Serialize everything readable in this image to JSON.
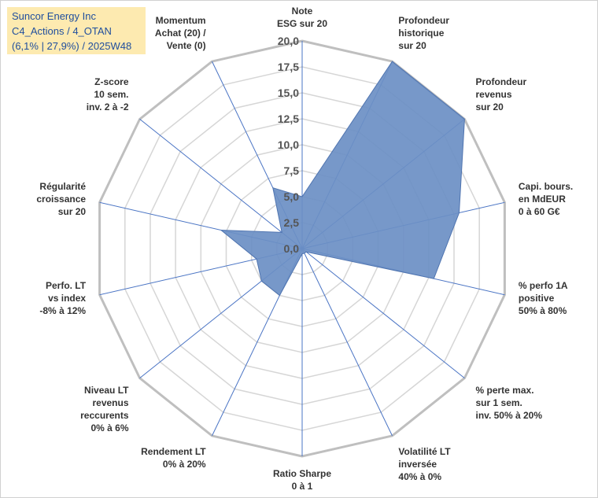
{
  "header": {
    "line1": "Suncor Energy Inc",
    "line2": "C4_Actions / 4_OTAN",
    "line3": "(6,1% | 27,9%) / 2025W48"
  },
  "chart_data": {
    "type": "radar",
    "rmin": 0,
    "rmax": 20,
    "ticks": [
      "0,0",
      "2,5",
      "5,0",
      "7,5",
      "10,0",
      "12,5",
      "15,0",
      "17,5",
      "20,0"
    ],
    "tick_values": [
      0,
      2.5,
      5,
      7.5,
      10,
      12.5,
      15,
      17.5,
      20
    ],
    "grid": true,
    "series_color": "#6b8fc4",
    "axes": [
      {
        "label": [
          "Note",
          "ESG sur 20"
        ],
        "value": 5.0
      },
      {
        "label": [
          "Profondeur",
          "historique",
          "sur 20"
        ],
        "value": 20.0
      },
      {
        "label": [
          "Profondeur",
          "revenus",
          "sur 20"
        ],
        "value": 20.0
      },
      {
        "label": [
          "Capi. bours.",
          "en MdEUR",
          "0 à 60 G€"
        ],
        "value": 15.5
      },
      {
        "label": [
          "% perfo 1A",
          "positive",
          "50% à 80%"
        ],
        "value": 13.0
      },
      {
        "label": [
          "% perte max.",
          "sur 1 sem.",
          "inv. 50% à 20%"
        ],
        "value": 0.5
      },
      {
        "label": [
          "Volatilité LT",
          "inversée",
          "40% à 0%"
        ],
        "value": 0.5
      },
      {
        "label": [
          "Ratio Sharpe",
          "0 à 1"
        ],
        "value": 0.5
      },
      {
        "label": [
          "Rendement LT",
          "0% à 20%"
        ],
        "value": 5.0
      },
      {
        "label": [
          "Niveau LT",
          "revenus",
          "reccurents",
          "0% à 6%"
        ],
        "value": 5.0
      },
      {
        "label": [
          "Perfo. LT",
          "vs index",
          "-8% à 12%"
        ],
        "value": 4.5
      },
      {
        "label": [
          "Régularité",
          "croissance",
          "sur 20"
        ],
        "value": 8.0
      },
      {
        "label": [
          "Z-score",
          "10 sem.",
          "inv. 2 à -2"
        ],
        "value": 2.5
      },
      {
        "label": [
          "Momentum",
          "Achat (20) /",
          "Vente (0)"
        ],
        "value": 6.5
      }
    ]
  }
}
